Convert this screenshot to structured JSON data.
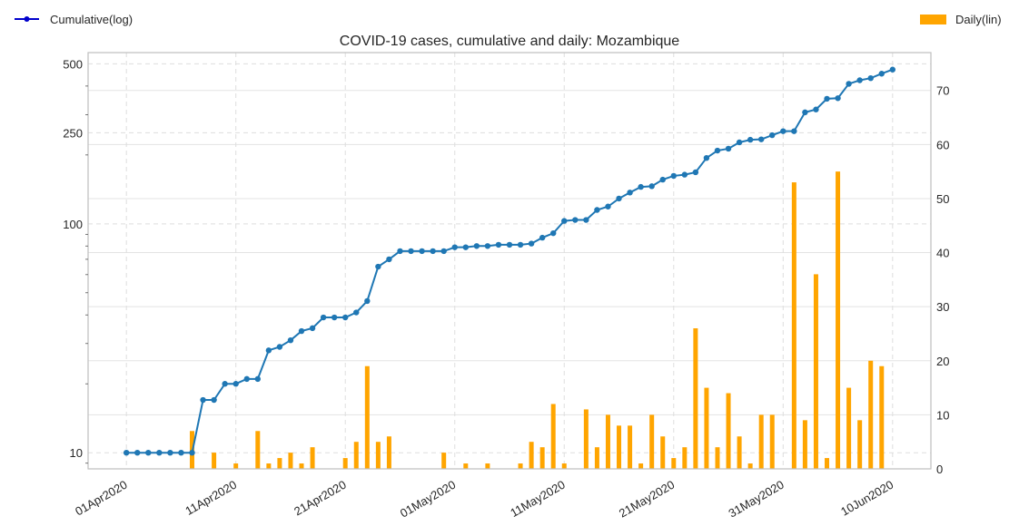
{
  "chart_data": {
    "type": "bar+line",
    "title": "COVID-19 cases, cumulative and daily: Mozambique",
    "xlabel": "",
    "ylabel_left": "",
    "ylabel_right": "",
    "x_start_date": "01Apr2020",
    "x_tick_labels": [
      "01Apr2020",
      "11Apr2020",
      "21Apr2020",
      "01May2020",
      "11May2020",
      "21May2020",
      "31May2020",
      "10Jun2020"
    ],
    "x_tick_days": [
      0,
      10,
      20,
      30,
      40,
      50,
      60,
      70
    ],
    "x_range_days": [
      -3.5,
      73.5
    ],
    "left_axis": {
      "scale": "log",
      "range": [
        8.5,
        560
      ],
      "tick_values": [
        10,
        100,
        250,
        500
      ],
      "tick_labels": [
        "10",
        "100",
        "250",
        "500"
      ]
    },
    "right_axis": {
      "scale": "linear",
      "range": [
        0,
        77
      ],
      "tick_values": [
        0,
        10,
        20,
        30,
        40,
        50,
        60,
        70
      ],
      "tick_labels": [
        "0",
        "10",
        "20",
        "30",
        "40",
        "50",
        "60",
        "70"
      ]
    },
    "grid": true,
    "legend": [
      {
        "label": "Cumulative(log)",
        "placement": "top-left",
        "color": "#0000cc",
        "kind": "line-marker"
      },
      {
        "label": "Daily(lin)",
        "placement": "top-right",
        "color": "#ffa500",
        "kind": "patch"
      }
    ],
    "series": [
      {
        "name": "Cumulative(log)",
        "axis": "left",
        "kind": "line",
        "color": "#1f77b4",
        "days": [
          0,
          1,
          2,
          3,
          4,
          5,
          6,
          7,
          8,
          9,
          10,
          11,
          12,
          13,
          14,
          15,
          16,
          17,
          18,
          19,
          20,
          21,
          22,
          23,
          24,
          25,
          26,
          27,
          28,
          29,
          30,
          31,
          32,
          33,
          34,
          35,
          36,
          37,
          38,
          39,
          40,
          41,
          42,
          43,
          44,
          45,
          46,
          47,
          48,
          49,
          50,
          51,
          52,
          53,
          54,
          55,
          56,
          57,
          58,
          59,
          60,
          61,
          62,
          63,
          64,
          65,
          66,
          67,
          68,
          69,
          70
        ],
        "values": [
          10,
          10,
          10,
          10,
          10,
          10,
          10,
          17,
          17,
          20,
          20,
          21,
          21,
          28,
          29,
          31,
          34,
          35,
          39,
          39,
          39,
          41,
          46,
          65,
          70,
          76,
          76,
          76,
          76,
          76,
          79,
          79,
          80,
          80,
          81,
          81,
          81,
          82,
          87,
          91,
          103,
          104,
          104,
          115,
          119,
          129,
          137,
          145,
          146,
          156,
          162,
          164,
          168,
          194,
          209,
          213,
          227,
          233,
          234,
          244,
          254,
          254,
          307,
          316,
          352,
          354,
          409,
          424,
          433,
          453,
          472
        ]
      },
      {
        "name": "Daily(lin)",
        "axis": "right",
        "kind": "bar",
        "color": "#ffa500",
        "days": [
          6,
          8,
          10,
          12,
          13,
          14,
          15,
          16,
          17,
          20,
          21,
          22,
          23,
          24,
          29,
          31,
          33,
          36,
          37,
          38,
          39,
          40,
          42,
          43,
          44,
          45,
          46,
          47,
          48,
          49,
          50,
          51,
          52,
          53,
          54,
          55,
          56,
          57,
          58,
          59,
          61,
          62,
          63,
          64,
          65,
          66,
          67,
          68,
          69
        ],
        "values": [
          7,
          3,
          1,
          7,
          1,
          2,
          3,
          1,
          4,
          2,
          5,
          19,
          5,
          6,
          3,
          1,
          1,
          1,
          5,
          4,
          12,
          1,
          11,
          4,
          10,
          8,
          8,
          1,
          10,
          6,
          2,
          4,
          26,
          15,
          4,
          14,
          6,
          1,
          10,
          10,
          53,
          9,
          36,
          2,
          55,
          15,
          9,
          20,
          19
        ]
      }
    ]
  }
}
